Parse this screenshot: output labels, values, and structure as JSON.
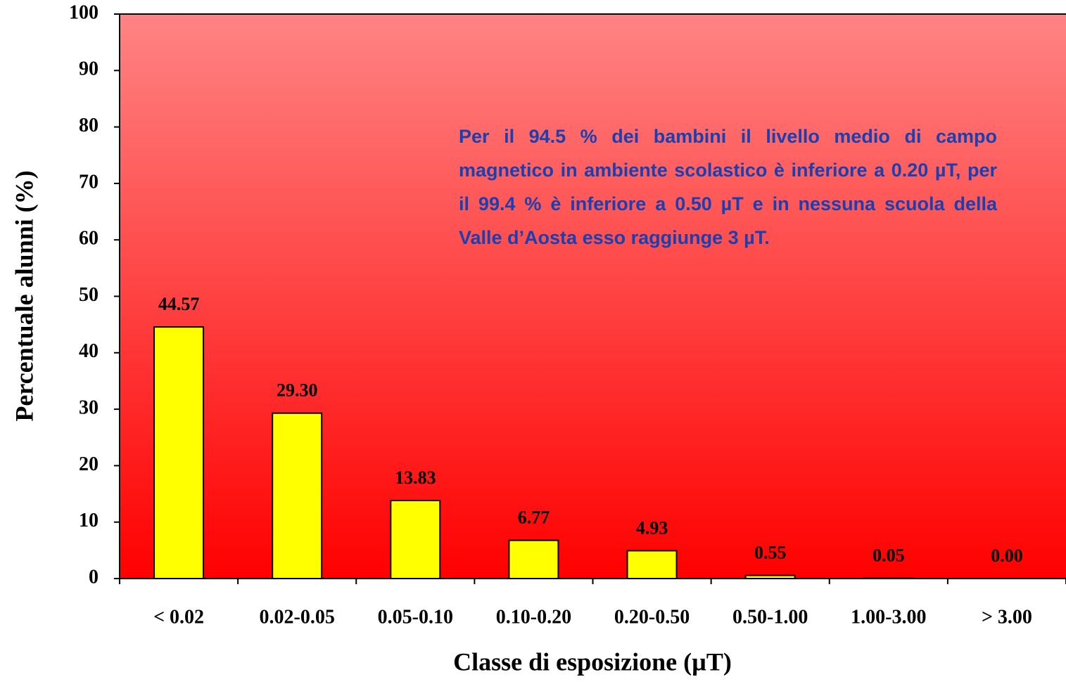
{
  "chart_data": {
    "type": "bar",
    "categories": [
      "< 0.02",
      "0.02-0.05",
      "0.05-0.10",
      "0.10-0.20",
      "0.20-0.50",
      "0.50-1.00",
      "1.00-3.00",
      "> 3.00"
    ],
    "values": [
      44.57,
      29.3,
      13.83,
      6.77,
      4.93,
      0.55,
      0.05,
      0
    ],
    "value_labels": [
      "44.57",
      "29.30",
      "13.83",
      "6.77",
      "4.93",
      "0.55",
      "0.05",
      "0.00"
    ],
    "color": "#ffff00",
    "ylim": [
      0,
      100
    ],
    "yticks": [
      0,
      10,
      20,
      30,
      40,
      50,
      60,
      70,
      80,
      90,
      100
    ],
    "xlabel": "Classe di esposizione (µT)",
    "ylabel": "Percentuale alunni (%)",
    "annotation": "Per il 94.5 % dei bambini il livello medio di campo magnetico in ambiente scolastico è inferiore a 0.20 µT, per il 99.4 % è inferiore a 0.50 µT e in nessuna scuola della Valle d’Aosta esso raggiunge 3 µT."
  }
}
